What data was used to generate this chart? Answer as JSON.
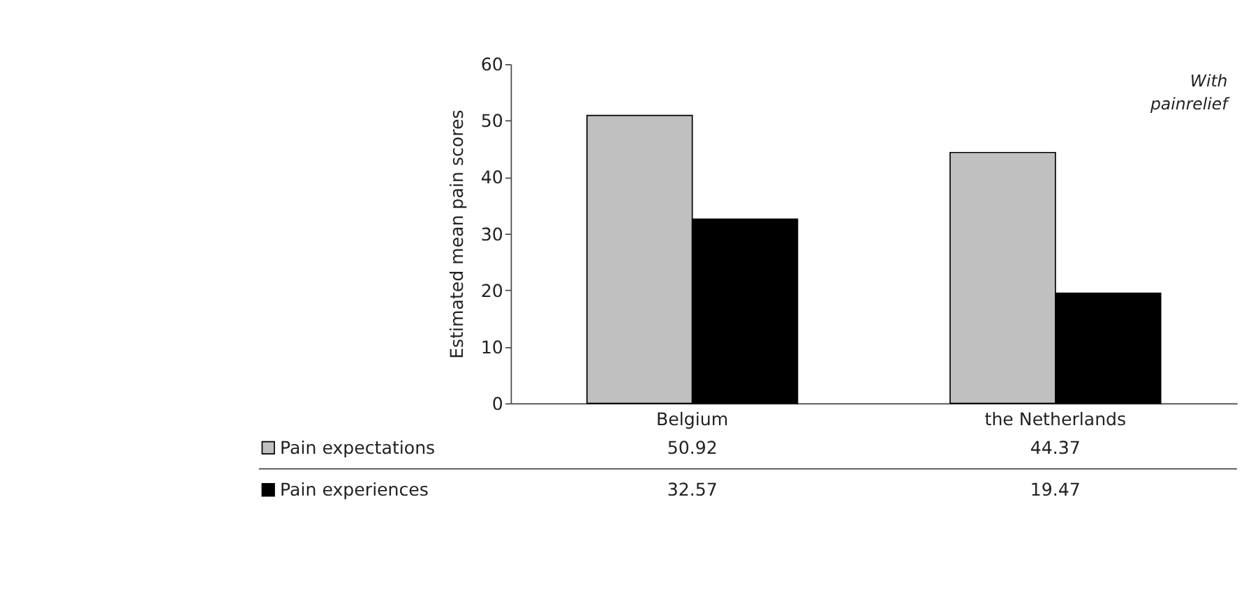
{
  "chart_data": {
    "type": "bar",
    "ylabel": "Estimated mean pain scores",
    "categories": [
      "Belgium",
      "the Netherlands"
    ],
    "series": [
      {
        "name": "Pain expectations",
        "color": "#c0c0c0",
        "values": [
          50.92,
          44.37
        ]
      },
      {
        "name": "Pain experiences",
        "color": "#000000",
        "values": [
          32.57,
          19.47
        ]
      }
    ],
    "ylim": [
      0,
      60
    ],
    "yticks": [
      0,
      10,
      20,
      30,
      40,
      50,
      60
    ],
    "grid": false,
    "legend": "bottom left",
    "data_labels": true,
    "annotations": [
      "With painrelief"
    ]
  }
}
